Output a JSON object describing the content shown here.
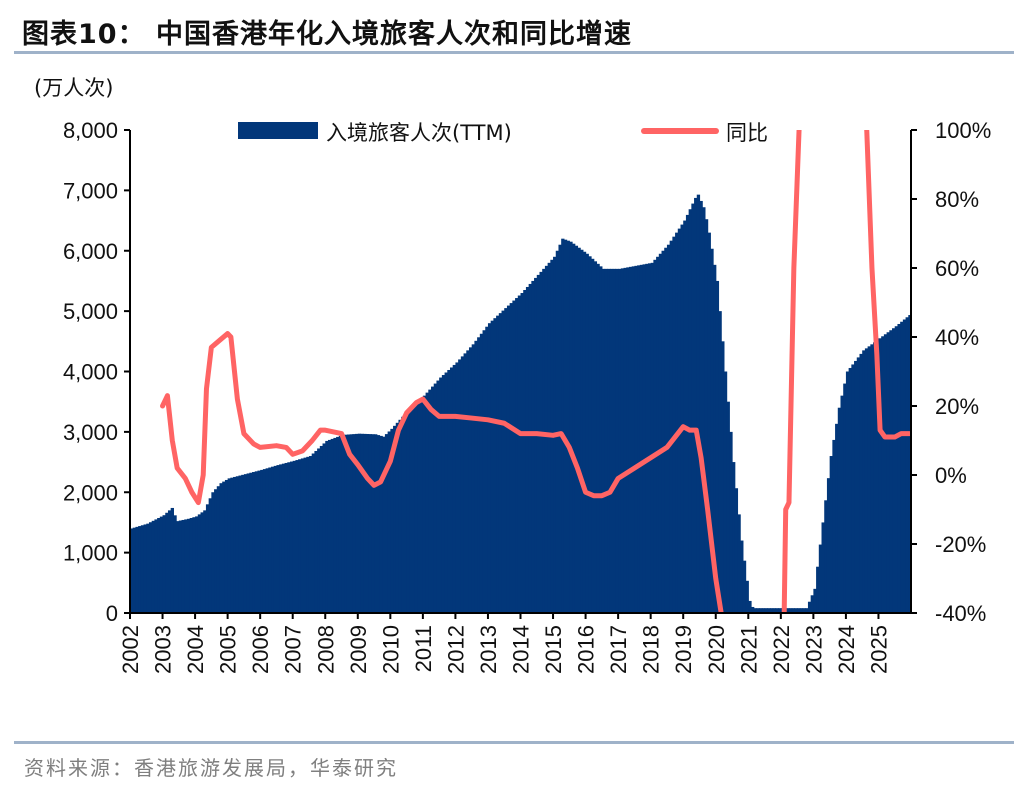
{
  "title": "图表10：  中国香港年化入境旅客人次和同比增速",
  "unit_label": "(万人次)",
  "source": "资料来源：香港旅游发展局，华泰研究",
  "chart_data": {
    "type": "bar+line",
    "title": "中国香港年化入境旅客人次和同比增速",
    "ylabel_left": "(万人次)",
    "ylim_left": [
      0,
      8000
    ],
    "ylim_right": [
      -40,
      100
    ],
    "yticks_left": [
      "0",
      "1,000",
      "2,000",
      "3,000",
      "4,000",
      "5,000",
      "6,000",
      "7,000",
      "8,000"
    ],
    "yticks_right": [
      "-40%",
      "-20%",
      "0%",
      "20%",
      "40%",
      "60%",
      "80%",
      "100%"
    ],
    "xticks": [
      "2002",
      "2003",
      "2004",
      "2005",
      "2006",
      "2007",
      "2008",
      "2009",
      "2010",
      "2011",
      "2012",
      "2013",
      "2014",
      "2015",
      "2016",
      "2017",
      "2018",
      "2019",
      "2020",
      "2021",
      "2022",
      "2023",
      "2024",
      "2025"
    ],
    "xlim": [
      2002,
      2026
    ],
    "grid": false,
    "legend_position": "top",
    "colors": {
      "bars": "#02377a",
      "line": "#ff6464"
    },
    "series": [
      {
        "name": "入境旅客人次(TTM)",
        "type": "bar",
        "axis": "left",
        "points": [
          [
            2002.0,
            1400
          ],
          [
            2002.5,
            1480
          ],
          [
            2003.0,
            1620
          ],
          [
            2003.25,
            1740
          ],
          [
            2003.4,
            1520
          ],
          [
            2003.75,
            1560
          ],
          [
            2004.0,
            1600
          ],
          [
            2004.25,
            1700
          ],
          [
            2004.5,
            2000
          ],
          [
            2004.75,
            2150
          ],
          [
            2005.0,
            2230
          ],
          [
            2005.5,
            2300
          ],
          [
            2006.0,
            2370
          ],
          [
            2006.5,
            2450
          ],
          [
            2007.0,
            2520
          ],
          [
            2007.5,
            2600
          ],
          [
            2008.0,
            2850
          ],
          [
            2008.5,
            2950
          ],
          [
            2009.0,
            2970
          ],
          [
            2009.5,
            2960
          ],
          [
            2009.75,
            2920
          ],
          [
            2010.0,
            3050
          ],
          [
            2010.5,
            3350
          ],
          [
            2011.0,
            3600
          ],
          [
            2011.5,
            3900
          ],
          [
            2012.0,
            4150
          ],
          [
            2012.5,
            4450
          ],
          [
            2013.0,
            4800
          ],
          [
            2013.5,
            5050
          ],
          [
            2014.0,
            5300
          ],
          [
            2014.5,
            5600
          ],
          [
            2015.0,
            5900
          ],
          [
            2015.25,
            6200
          ],
          [
            2015.5,
            6150
          ],
          [
            2016.0,
            5950
          ],
          [
            2016.5,
            5700
          ],
          [
            2017.0,
            5700
          ],
          [
            2017.5,
            5750
          ],
          [
            2018.0,
            5800
          ],
          [
            2018.5,
            6100
          ],
          [
            2019.0,
            6500
          ],
          [
            2019.4,
            6950
          ],
          [
            2019.6,
            6700
          ],
          [
            2019.75,
            6300
          ],
          [
            2020.0,
            5500
          ],
          [
            2020.25,
            4000
          ],
          [
            2020.5,
            2500
          ],
          [
            2020.75,
            1200
          ],
          [
            2021.0,
            200
          ],
          [
            2021.1,
            80
          ],
          [
            2022.75,
            80
          ],
          [
            2023.0,
            400
          ],
          [
            2023.25,
            1500
          ],
          [
            2023.5,
            2600
          ],
          [
            2023.75,
            3400
          ],
          [
            2024.0,
            4000
          ],
          [
            2024.5,
            4350
          ],
          [
            2025.0,
            4550
          ],
          [
            2025.5,
            4750
          ],
          [
            2025.95,
            4950
          ]
        ]
      },
      {
        "name": "同比",
        "type": "line",
        "axis": "right",
        "segments": [
          [
            [
              2003.0,
              20
            ],
            [
              2003.15,
              23
            ],
            [
              2003.3,
              10
            ],
            [
              2003.45,
              2
            ],
            [
              2003.7,
              -1
            ],
            [
              2003.9,
              -5
            ],
            [
              2004.1,
              -8
            ],
            [
              2004.25,
              0
            ],
            [
              2004.35,
              25
            ],
            [
              2004.5,
              37
            ],
            [
              2004.75,
              39
            ],
            [
              2005.0,
              41
            ],
            [
              2005.1,
              40
            ],
            [
              2005.3,
              22
            ],
            [
              2005.5,
              12
            ],
            [
              2005.8,
              9
            ],
            [
              2006.0,
              8
            ],
            [
              2006.5,
              8.5
            ],
            [
              2006.8,
              8
            ],
            [
              2007.0,
              6
            ],
            [
              2007.3,
              7
            ],
            [
              2007.6,
              10
            ],
            [
              2007.85,
              13
            ],
            [
              2008.0,
              13
            ],
            [
              2008.5,
              12
            ],
            [
              2008.75,
              6
            ],
            [
              2009.0,
              3
            ],
            [
              2009.3,
              -1
            ],
            [
              2009.5,
              -3
            ],
            [
              2009.7,
              -2
            ],
            [
              2010.0,
              4
            ],
            [
              2010.25,
              13
            ],
            [
              2010.5,
              18
            ],
            [
              2010.8,
              21
            ],
            [
              2011.0,
              22
            ],
            [
              2011.25,
              19
            ],
            [
              2011.5,
              17
            ],
            [
              2012.0,
              17
            ],
            [
              2012.5,
              16.5
            ],
            [
              2013.0,
              16
            ],
            [
              2013.5,
              15
            ],
            [
              2014.0,
              12
            ],
            [
              2014.5,
              12
            ],
            [
              2015.0,
              11.5
            ],
            [
              2015.25,
              12
            ],
            [
              2015.5,
              8
            ],
            [
              2015.75,
              2
            ],
            [
              2016.0,
              -5
            ],
            [
              2016.25,
              -6
            ],
            [
              2016.5,
              -6
            ],
            [
              2016.75,
              -5
            ],
            [
              2017.0,
              -1
            ],
            [
              2017.5,
              2
            ],
            [
              2018.0,
              5
            ],
            [
              2018.5,
              8
            ],
            [
              2018.75,
              11
            ],
            [
              2019.0,
              14
            ],
            [
              2019.2,
              13
            ],
            [
              2019.4,
              13
            ],
            [
              2019.55,
              5
            ],
            [
              2019.75,
              -10
            ],
            [
              2020.0,
              -30
            ],
            [
              2020.2,
              -42
            ]
          ],
          [
            [
              2022.1,
              -42
            ],
            [
              2022.15,
              -10
            ],
            [
              2022.25,
              -8
            ],
            [
              2022.4,
              60
            ],
            [
              2022.6,
              110
            ]
          ],
          [
            [
              2024.6,
              110
            ],
            [
              2024.8,
              60
            ],
            [
              2024.95,
              35
            ],
            [
              2025.05,
              13
            ],
            [
              2025.2,
              11
            ],
            [
              2025.5,
              11
            ],
            [
              2025.7,
              12
            ],
            [
              2025.95,
              12
            ]
          ]
        ]
      }
    ]
  }
}
